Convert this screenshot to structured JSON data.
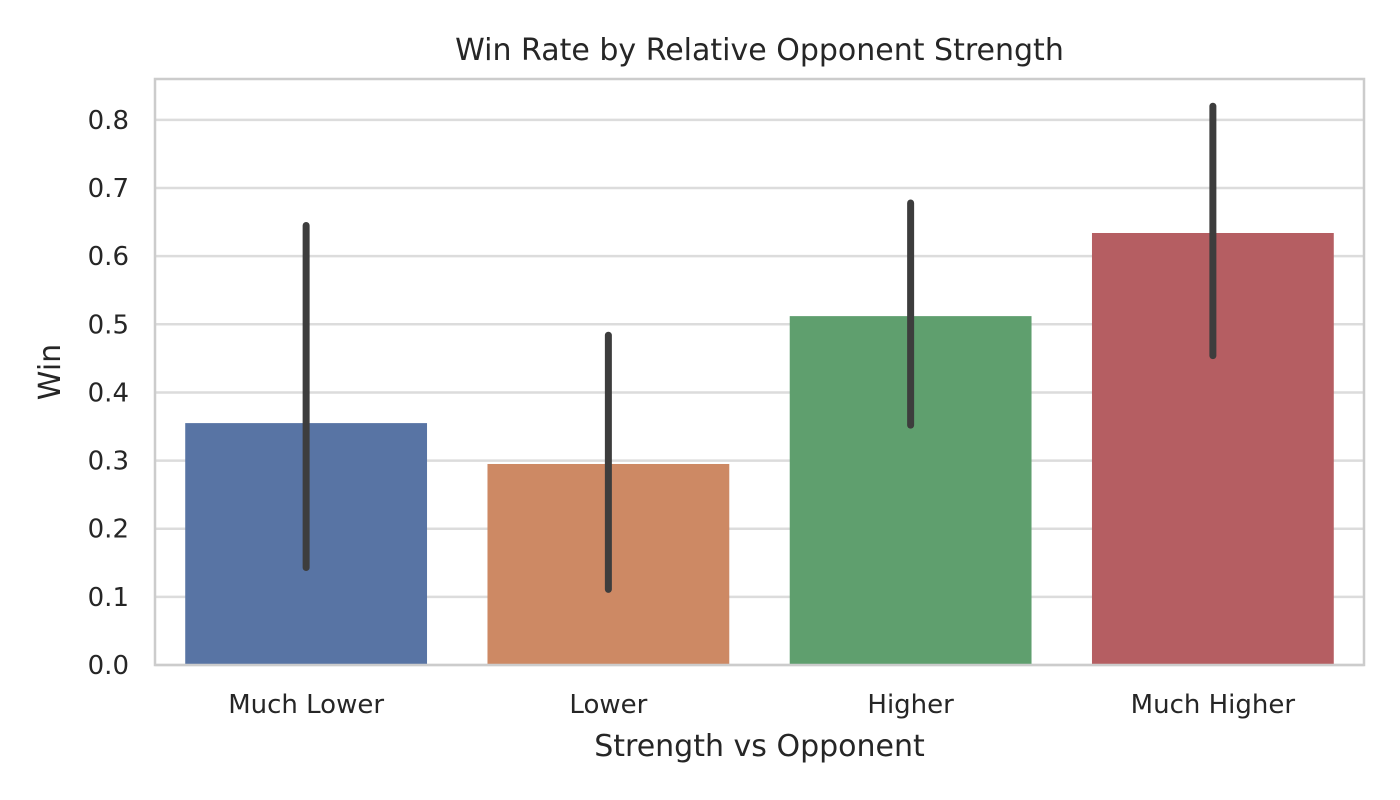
{
  "chart_data": {
    "type": "bar",
    "title": "Win Rate by Relative Opponent Strength",
    "xlabel": "Strength vs Opponent",
    "ylabel": "Win",
    "categories": [
      "Much Lower",
      "Lower",
      "Higher",
      "Much Higher"
    ],
    "values": [
      0.355,
      0.295,
      0.512,
      0.634
    ],
    "error_bars": [
      {
        "low": 0.143,
        "high": 0.645
      },
      {
        "low": 0.111,
        "high": 0.484
      },
      {
        "low": 0.352,
        "high": 0.678
      },
      {
        "low": 0.454,
        "high": 0.82
      }
    ],
    "colors": [
      "#5874a4",
      "#cd8964",
      "#5f9f6e",
      "#b55e62"
    ],
    "error_bar_color": "#3d3d3d",
    "ylim": [
      0,
      0.86
    ],
    "yticks": [
      "0.0",
      "0.1",
      "0.2",
      "0.3",
      "0.4",
      "0.5",
      "0.6",
      "0.7",
      "0.8"
    ],
    "grid": "horizontal",
    "legend": "none"
  }
}
